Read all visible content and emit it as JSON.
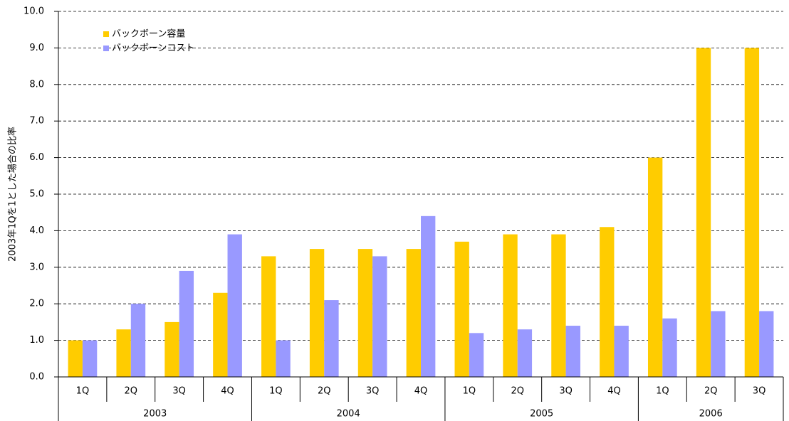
{
  "chart_data": {
    "type": "bar",
    "y_label": "2003年1Qを1とした場合の比率",
    "groups": [
      {
        "name": "2003",
        "categories": [
          "1Q",
          "2Q",
          "3Q",
          "4Q"
        ]
      },
      {
        "name": "2004",
        "categories": [
          "1Q",
          "2Q",
          "3Q",
          "4Q"
        ]
      },
      {
        "name": "2005",
        "categories": [
          "1Q",
          "2Q",
          "3Q",
          "4Q"
        ]
      },
      {
        "name": "2006",
        "categories": [
          "1Q",
          "2Q",
          "3Q"
        ]
      }
    ],
    "series": [
      {
        "name": "バックボーン容量",
        "color": "#ffcc00",
        "values": [
          1.0,
          1.3,
          1.5,
          2.3,
          3.3,
          3.5,
          3.5,
          3.5,
          3.7,
          3.9,
          3.9,
          4.1,
          6.0,
          9.0,
          9.0
        ]
      },
      {
        "name": "バックボーンコスト",
        "color": "#9999ff",
        "values": [
          1.0,
          2.0,
          2.9,
          3.9,
          1.0,
          2.1,
          3.3,
          4.4,
          1.2,
          1.3,
          1.4,
          1.4,
          1.6,
          1.8,
          1.8
        ]
      }
    ],
    "ylim": [
      0,
      10
    ],
    "yticks": [
      {
        "value": 0,
        "label": "0.0"
      },
      {
        "value": 1,
        "label": "1.0"
      },
      {
        "value": 2,
        "label": "2.0"
      },
      {
        "value": 3,
        "label": "3.0"
      },
      {
        "value": 4,
        "label": "4.0"
      },
      {
        "value": 5,
        "label": "5.0"
      },
      {
        "value": 6,
        "label": "6.0"
      },
      {
        "value": 7,
        "label": "7.0"
      },
      {
        "value": 8,
        "label": "8.0"
      },
      {
        "value": 9,
        "label": "9.0"
      },
      {
        "value": 10,
        "label": "10.0"
      }
    ],
    "grid": true,
    "legend": "top-left"
  }
}
